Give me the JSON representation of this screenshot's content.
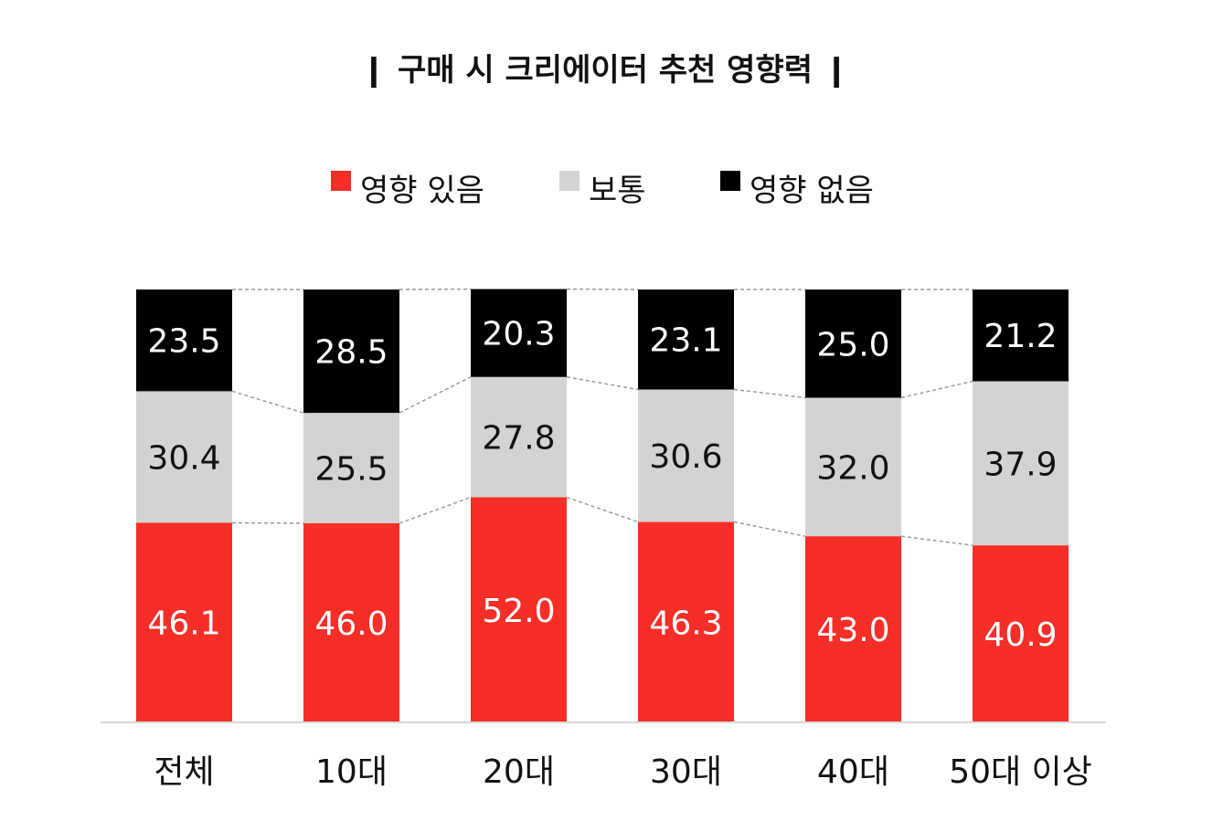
{
  "chart_data": {
    "type": "bar",
    "stacked": true,
    "percent_stacked": true,
    "title": "❙ 구매 시 크리에이터 추천 영향력 ❙",
    "categories": [
      "전체",
      "10대",
      "20대",
      "30대",
      "40대",
      "50대 이상"
    ],
    "series": [
      {
        "name": "영향 있음",
        "color": "#f52e27",
        "label_color": "#ffffff",
        "values": [
          46.1,
          46.0,
          52.0,
          46.3,
          43.0,
          40.9
        ]
      },
      {
        "name": "보통",
        "color": "#d3d3d3",
        "label_color": "#111111",
        "values": [
          30.4,
          25.5,
          27.8,
          30.6,
          32.0,
          37.9
        ]
      },
      {
        "name": "영향 없음",
        "color": "#000000",
        "label_color": "#ffffff",
        "values": [
          23.5,
          28.5,
          20.3,
          23.1,
          25.0,
          21.2
        ]
      }
    ],
    "legend_position": "top",
    "connector_lines": "dashed",
    "grid": false,
    "ylim": [
      0,
      100
    ]
  }
}
